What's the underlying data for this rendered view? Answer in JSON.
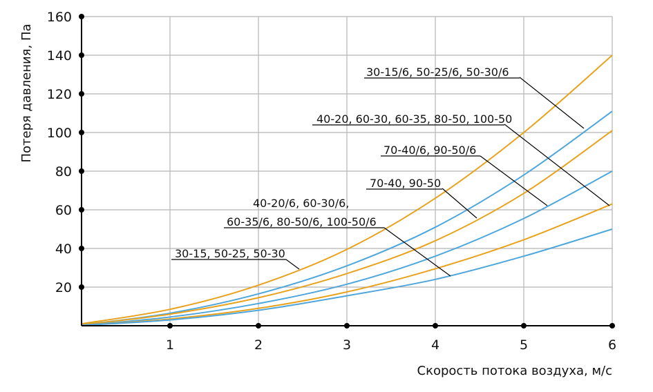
{
  "chart_data": {
    "type": "line",
    "title": "",
    "xlabel": "Скорость потока воздуха, м/с",
    "ylabel": "Потеря давления, Па",
    "xlim": [
      0,
      6
    ],
    "ylim": [
      0,
      160
    ],
    "x_ticks": [
      "1",
      "2",
      "3",
      "4",
      "5",
      "6"
    ],
    "y_ticks": [
      "20",
      "40",
      "60",
      "80",
      "100",
      "120",
      "140",
      "160"
    ],
    "grid": true,
    "x": [
      0,
      1,
      2,
      3,
      4,
      5,
      6
    ],
    "series": [
      {
        "name": "30-15/6, 50-25/6, 50-30/6",
        "color": "#e8a21c",
        "values": [
          1,
          8.5,
          21,
          39.5,
          66,
          100,
          140
        ]
      },
      {
        "name": "40-20, 60-30, 60-35, 80-50, 100-50",
        "color": "#4ea6dc",
        "values": [
          0.5,
          6.5,
          16.5,
          31,
          51,
          78,
          111
        ]
      },
      {
        "name": "70-40/6, 90-50/6",
        "color": "#e8a21c",
        "values": [
          0.5,
          6,
          14.5,
          27,
          44,
          68.5,
          101
        ]
      },
      {
        "name": "70-40, 90-50",
        "color": "#4ea6dc",
        "values": [
          0.2,
          4.5,
          11.5,
          21.5,
          36,
          55.5,
          80
        ]
      },
      {
        "name": "40-20/6, 60-30/6, 60-35/6, 80-50/6, 100-50/6",
        "color": "#e8a21c",
        "values": [
          0.2,
          3.5,
          9,
          17.5,
          29.5,
          44.5,
          63
        ]
      },
      {
        "name": "30-15, 50-25, 50-30",
        "color": "#4ea6dc",
        "values": [
          0.2,
          3,
          8,
          15.5,
          24,
          36,
          50
        ]
      }
    ],
    "annotations": [
      {
        "text": "30-15/6, 50-25/6, 50-30/6",
        "series": 1
      },
      {
        "text": "40-20, 60-30, 60-35, 80-50, 100-50",
        "series": 4
      },
      {
        "text": "70-40/6, 90-50/6",
        "series": 3
      },
      {
        "text": "70-40, 90-50",
        "series": 2
      },
      {
        "text": "40-20/6, 60-30/6,",
        "series": 5
      },
      {
        "text": "60-35/6, 80-50/6, 100-50/6",
        "series": 5
      },
      {
        "text": "30-15, 50-25, 50-30",
        "series": 0
      }
    ],
    "colors": {
      "orange": "#e8a21c",
      "blue": "#4ea6dc",
      "grid": "#b3b3b3",
      "axis": "#000000"
    }
  }
}
